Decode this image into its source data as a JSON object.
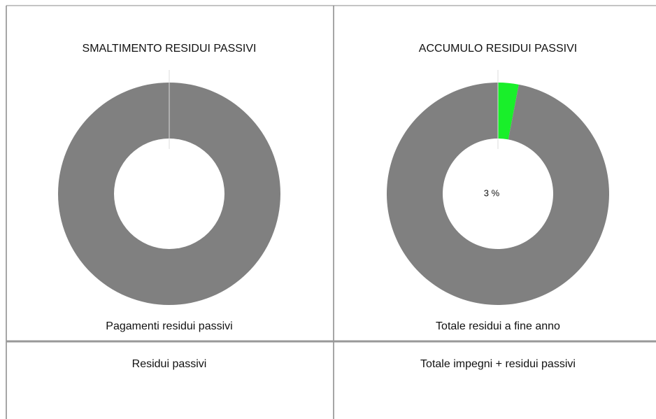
{
  "chart_data": [
    {
      "type": "donut",
      "title": "SMALTIMENTO RESIDUI PASSIVI",
      "caption": "Pagamenti residui passivi",
      "footer": "Residui passivi",
      "values": [
        0,
        100
      ],
      "colors": [
        "#19ef2a",
        "#808080"
      ]
    },
    {
      "type": "donut",
      "title": "ACCUMULO RESIDUI PASSIVI",
      "caption": "Totale residui a fine anno",
      "footer": "Totale impegni + residui passivi",
      "values": [
        3,
        97
      ],
      "value_labels": [
        "3 %",
        null
      ],
      "colors": [
        "#19ef2a",
        "#808080"
      ]
    }
  ]
}
